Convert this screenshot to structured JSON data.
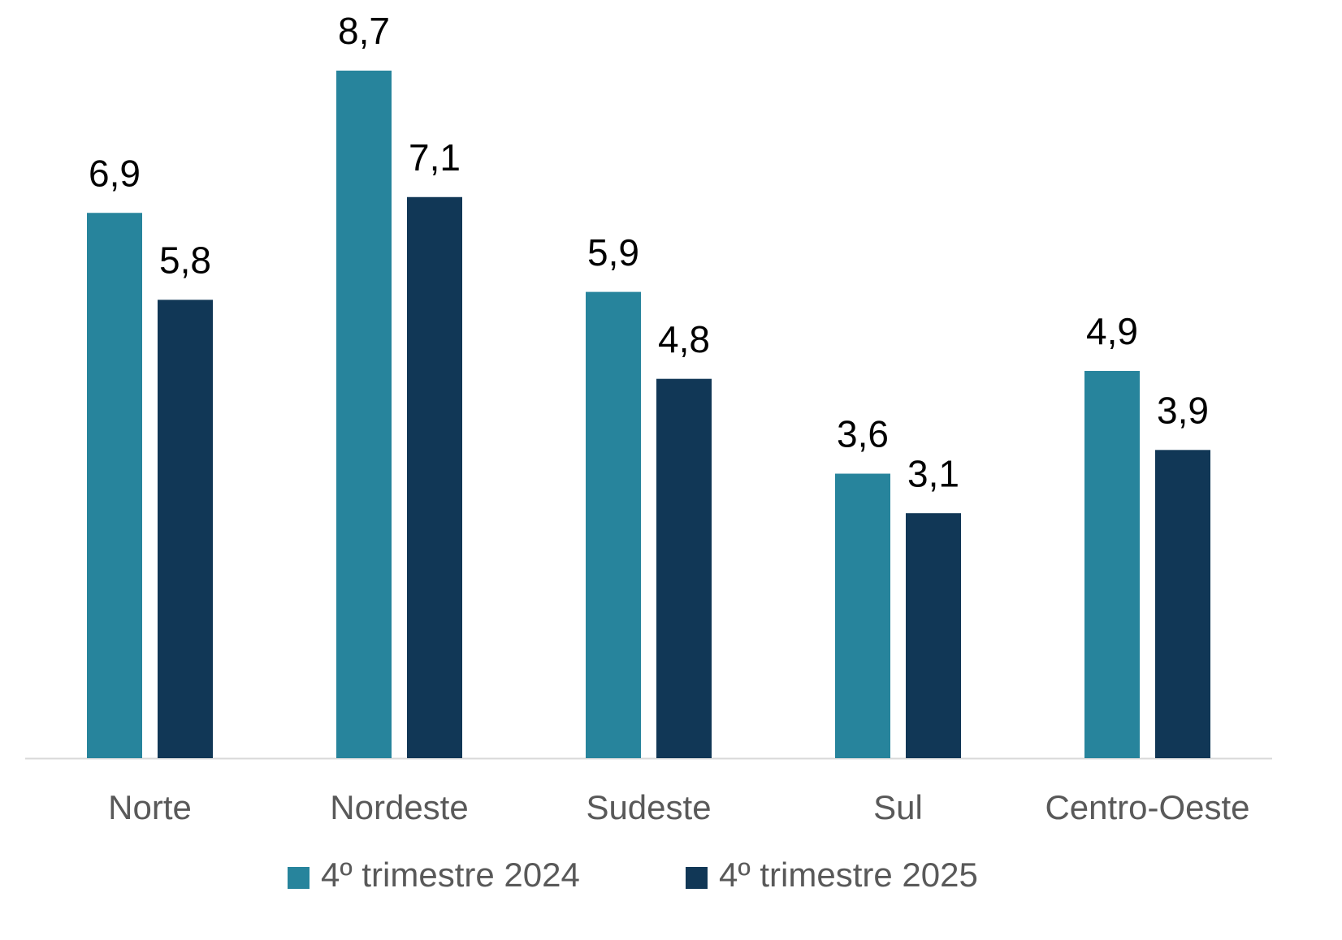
{
  "chart_data": {
    "type": "bar",
    "categories": [
      "Norte",
      "Nordeste",
      "Sudeste",
      "Sul",
      "Centro-Oeste"
    ],
    "series": [
      {
        "name": "4º trimestre 2024",
        "color": "#27849c",
        "values": [
          6.9,
          8.7,
          5.9,
          3.6,
          4.9
        ],
        "value_labels": [
          "6,9",
          "8,7",
          "5,9",
          "3,6",
          "4,9"
        ]
      },
      {
        "name": "4º trimestre 2025",
        "color": "#113756",
        "values": [
          5.8,
          7.1,
          4.8,
          3.1,
          3.9
        ],
        "value_labels": [
          "5,8",
          "7,1",
          "4,8",
          "3,1",
          "3,9"
        ]
      }
    ]
  }
}
